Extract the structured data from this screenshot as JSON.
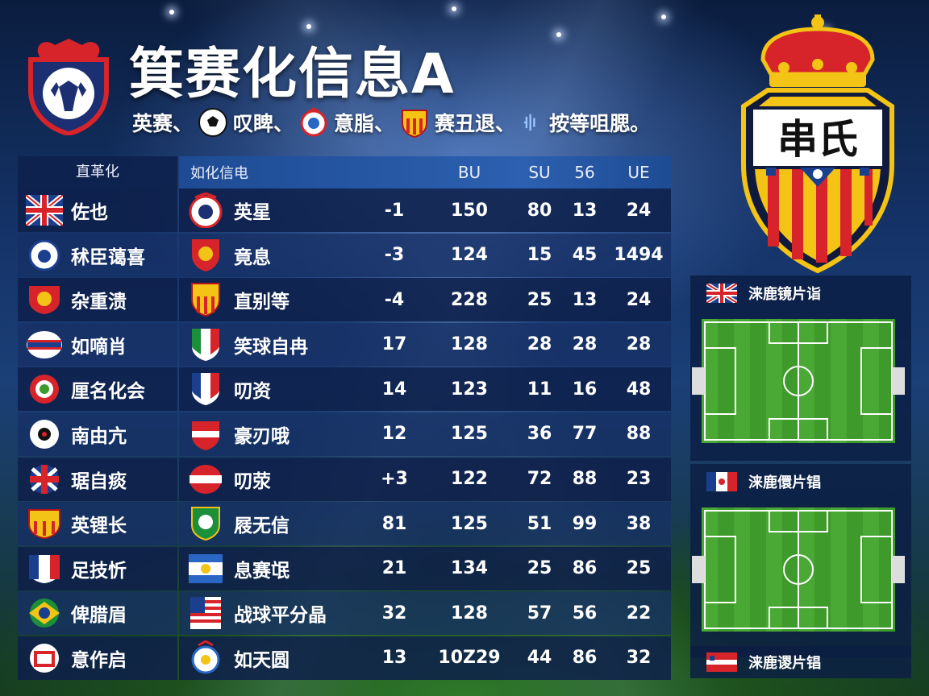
{
  "header": {
    "title": "箕赛化信息A",
    "subtitle": {
      "part1": "英赛、",
      "part2": "叹睥、",
      "part3": "意脂、",
      "part4": "赛丑退、",
      "part5": "按等咀腮。"
    }
  },
  "crest_right": {
    "text": "串氏"
  },
  "table": {
    "headers": {
      "team": "直革化",
      "club": "如化信电",
      "c2": "BU",
      "c3": "SU",
      "c4": "56",
      "c5": "UE"
    },
    "rows": [
      {
        "team": "佐也",
        "club": "英星",
        "c1": "-1",
        "c2": "150",
        "c3": "80",
        "c4": "13",
        "c5": "24"
      },
      {
        "team": "秫臣蔼喜",
        "club": "竟息",
        "c1": "-3",
        "c2": "124",
        "c3": "15",
        "c4": "45",
        "c5": "1494"
      },
      {
        "team": "杂重溃",
        "club": "直别等",
        "c1": "-4",
        "c2": "228",
        "c3": "25",
        "c4": "13",
        "c5": "24"
      },
      {
        "team": "如嘀肖",
        "club": "笑球自冉",
        "c1": "17",
        "c2": "128",
        "c3": "28",
        "c4": "28",
        "c5": "28"
      },
      {
        "team": "厘名化会",
        "club": "叨资",
        "c1": "14",
        "c2": "123",
        "c3": "11",
        "c4": "16",
        "c5": "48"
      },
      {
        "team": "南由亢",
        "club": "豪刃哦",
        "c1": "12",
        "c2": "125",
        "c3": "36",
        "c4": "77",
        "c5": "88"
      },
      {
        "team": "琚自痰",
        "club": "叨荥",
        "c1": "+3",
        "c2": "122",
        "c3": "72",
        "c4": "88",
        "c5": "23"
      },
      {
        "team": "英锂长",
        "club": "屐无信",
        "c1": "81",
        "c2": "125",
        "c3": "51",
        "c4": "99",
        "c5": "38"
      },
      {
        "team": "足技忻",
        "club": "息赛氓",
        "c1": "21",
        "c2": "134",
        "c3": "25",
        "c4": "86",
        "c5": "25"
      },
      {
        "team": "俾腊眉",
        "club": "战球平分晶",
        "c1": "32",
        "c2": "128",
        "c3": "57",
        "c4": "56",
        "c5": "22"
      },
      {
        "team": "意作启",
        "club": "如天圆",
        "c1": "13",
        "c2": "10Z29",
        "c3": "44",
        "c4": "86",
        "c5": "32"
      }
    ]
  },
  "panels": [
    {
      "label": "涞鹿镜片诣"
    },
    {
      "label": "涞鹿儇片锠"
    },
    {
      "label": "涞鹿谡片锠"
    }
  ],
  "colors": {
    "accent": "#2c60b0",
    "pitch": "#3f9a2c",
    "gold": "#f3c316",
    "red": "#d6242a"
  }
}
